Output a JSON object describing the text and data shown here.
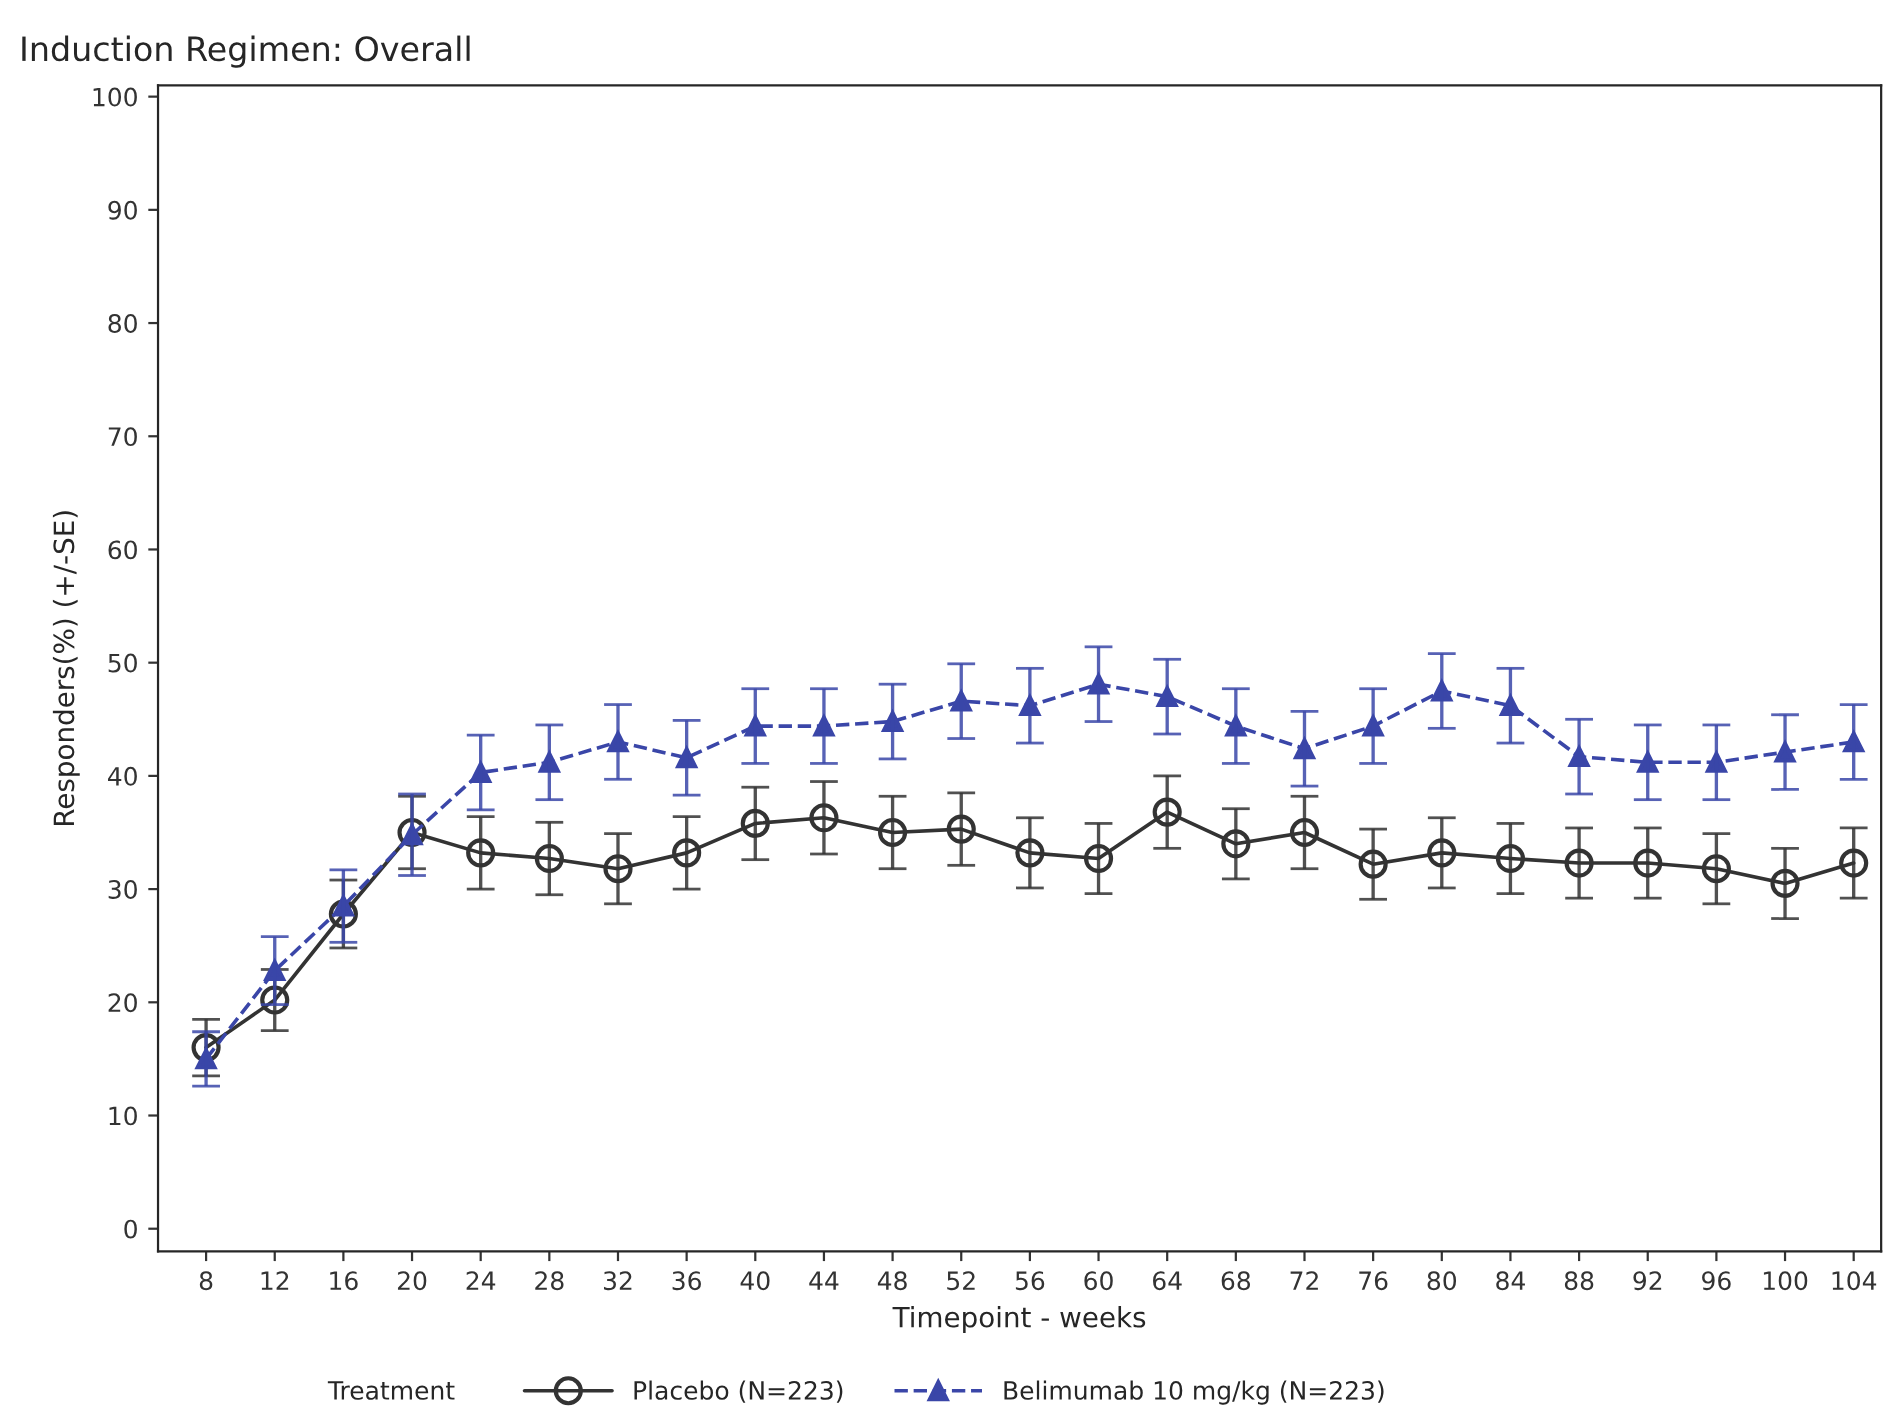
{
  "chart_data": {
    "type": "line",
    "title": "Induction Regimen: Overall",
    "xlabel": "Timepoint - weeks",
    "ylabel": "Responders(%) (+/-SE)",
    "legend_title": "Treatment",
    "categories": [
      "8",
      "12",
      "16",
      "20",
      "24",
      "28",
      "32",
      "36",
      "40",
      "44",
      "48",
      "52",
      "56",
      "60",
      "64",
      "68",
      "72",
      "76",
      "80",
      "84",
      "88",
      "92",
      "96",
      "100",
      "104"
    ],
    "series": [
      {
        "name": "Placebo (N=223)",
        "color": "#333333",
        "marker": "circle",
        "line_style": "solid",
        "values": [
          16,
          20.2,
          27.8,
          35,
          33.2,
          32.7,
          31.8,
          33.2,
          35.8,
          36.3,
          35,
          35.3,
          33.2,
          32.7,
          36.8,
          34,
          35,
          32.2,
          33.2,
          32.7,
          32.3,
          32.3,
          31.8,
          30.5,
          32.3
        ],
        "errors": [
          2.5,
          2.7,
          3,
          3.2,
          3.2,
          3.2,
          3.1,
          3.2,
          3.2,
          3.2,
          3.2,
          3.2,
          3.1,
          3.1,
          3.2,
          3.1,
          3.2,
          3.1,
          3.1,
          3.1,
          3.1,
          3.1,
          3.1,
          3.1,
          3.1
        ]
      },
      {
        "name": "Belimumab 10 mg/kg (N=223)",
        "color": "#3a46a8",
        "marker": "triangle",
        "line_style": "dashed",
        "values": [
          15,
          22.8,
          28.5,
          34.8,
          40.3,
          41.2,
          43,
          41.6,
          44.4,
          44.4,
          44.8,
          46.6,
          46.2,
          48.1,
          47,
          44.4,
          42.4,
          44.4,
          47.5,
          46.2,
          41.7,
          41.2,
          41.2,
          42.1,
          43
        ],
        "errors": [
          2.4,
          3,
          3.2,
          3.6,
          3.3,
          3.3,
          3.3,
          3.3,
          3.3,
          3.3,
          3.3,
          3.3,
          3.3,
          3.3,
          3.3,
          3.3,
          3.3,
          3.3,
          3.3,
          3.3,
          3.3,
          3.3,
          3.3,
          3.3,
          3.3
        ]
      }
    ],
    "ylim": [
      -2,
      101
    ],
    "yticks": [
      0,
      10,
      20,
      30,
      40,
      50,
      60,
      70,
      80,
      90,
      100
    ],
    "grid": false,
    "legend": "bottom"
  }
}
